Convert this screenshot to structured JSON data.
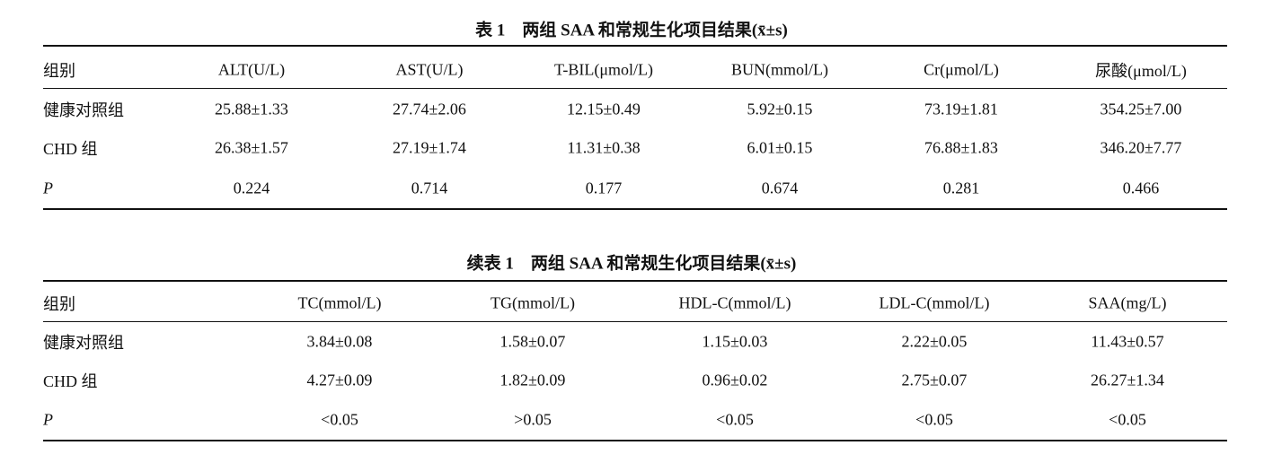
{
  "tables": [
    {
      "title": "表 1　两组 SAA 和常规生化项目结果(x̄±s)",
      "header": [
        "组别",
        "ALT(U/L)",
        "AST(U/L)",
        "T-BIL(μmol/L)",
        "BUN(mmol/L)",
        "Cr(μmol/L)",
        "尿酸(μmol/L)"
      ],
      "rows": [
        [
          "健康对照组",
          "25.88±1.33",
          "27.74±2.06",
          "12.15±0.49",
          "5.92±0.15",
          "73.19±1.81",
          "354.25±7.00"
        ],
        [
          "CHD 组",
          "26.38±1.57",
          "27.19±1.74",
          "11.31±0.38",
          "6.01±0.15",
          "76.88±1.83",
          "346.20±7.77"
        ],
        [
          "P",
          "0.224",
          "0.714",
          "0.177",
          "0.674",
          "0.281",
          "0.466"
        ]
      ]
    },
    {
      "title": "续表 1　两组 SAA 和常规生化项目结果(x̄±s)",
      "header": [
        "组别",
        "TC(mmol/L)",
        "TG(mmol/L)",
        "HDL-C(mmol/L)",
        "LDL-C(mmol/L)",
        "SAA(mg/L)"
      ],
      "rows": [
        [
          "健康对照组",
          "3.84±0.08",
          "1.58±0.07",
          "1.15±0.03",
          "2.22±0.05",
          "11.43±0.57"
        ],
        [
          "CHD 组",
          "4.27±0.09",
          "1.82±0.09",
          "0.96±0.02",
          "2.75±0.07",
          "26.27±1.34"
        ],
        [
          "P",
          "<0.05",
          ">0.05",
          "<0.05",
          "<0.05",
          "<0.05"
        ]
      ]
    }
  ]
}
